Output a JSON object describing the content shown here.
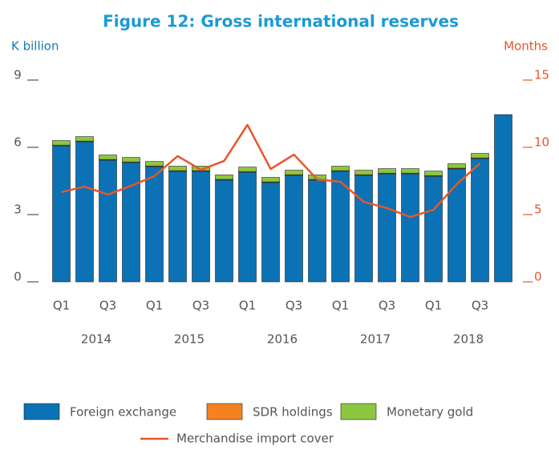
{
  "chart_data": {
    "type": "bar",
    "title": "Figure 12:  Gross international reserves",
    "y_label": "K billion",
    "y2_label": "Months",
    "categories": [
      "Q1",
      null,
      "Q3",
      null,
      "Q1",
      null,
      "Q3",
      null,
      "Q1",
      null,
      "Q3",
      null,
      "Q1",
      null,
      "Q3",
      null,
      "Q1",
      null,
      "Q3",
      null
    ],
    "years": [
      "2014",
      "2015",
      "2016",
      "2017",
      "2018"
    ],
    "ylim": [
      0,
      9
    ],
    "yticks": [
      0,
      3,
      6,
      9
    ],
    "y2lim": [
      0,
      15
    ],
    "y2ticks": [
      0,
      5,
      10,
      15
    ],
    "series": [
      {
        "name": "Foreign exchange",
        "color": "#0b72b5",
        "values": [
          6.07,
          6.25,
          5.43,
          5.32,
          5.14,
          4.93,
          4.93,
          4.54,
          4.89,
          4.43,
          4.75,
          4.54,
          4.93,
          4.75,
          4.82,
          4.82,
          4.71,
          5.04,
          5.5,
          7.46
        ]
      },
      {
        "name": "SDR holdings",
        "color": "#f58220",
        "values": [
          0.03,
          0.03,
          0.03,
          0.03,
          0.03,
          0.03,
          0.03,
          0.03,
          0.03,
          0.03,
          0.03,
          0.03,
          0.03,
          0.03,
          0.03,
          0.03,
          0.03,
          0.03,
          0.03,
          0
        ]
      },
      {
        "name": "Monetary gold",
        "color": "#8dc63f",
        "values": [
          0.2,
          0.2,
          0.2,
          0.2,
          0.2,
          0.2,
          0.2,
          0.2,
          0.2,
          0.2,
          0.2,
          0.2,
          0.2,
          0.2,
          0.2,
          0.2,
          0.2,
          0.2,
          0.2,
          0
        ]
      },
      {
        "name": "Merchandise import cover",
        "color": "#e8552a",
        "type": "line",
        "axis": "y2",
        "values": [
          6.67,
          7.08,
          6.49,
          7.14,
          7.86,
          9.35,
          8.33,
          8.99,
          11.67,
          8.39,
          9.46,
          7.62,
          7.44,
          5.95,
          5.48,
          4.82,
          5.36,
          7.26,
          8.81,
          null
        ]
      }
    ]
  }
}
